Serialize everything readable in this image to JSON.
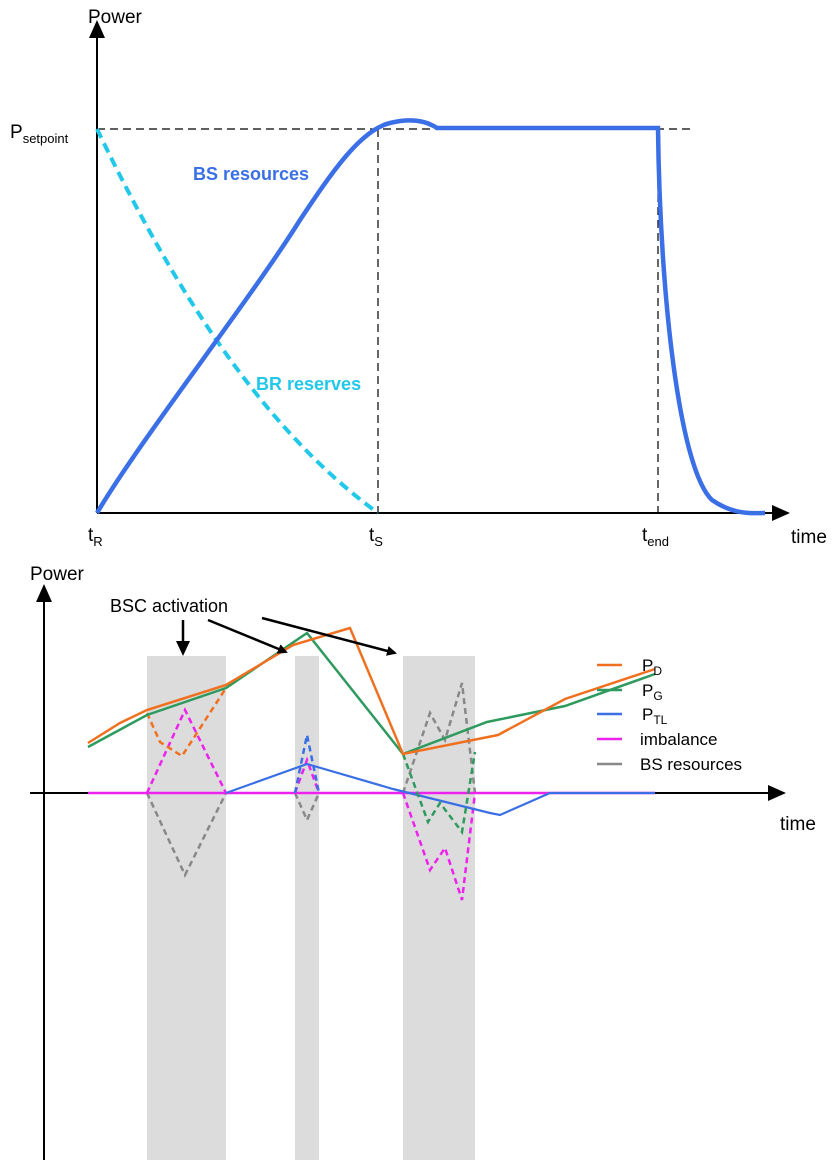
{
  "top": {
    "y_axis_label": "Power",
    "x_axis_label": "time",
    "setpoint_label_main": "P",
    "setpoint_label_sub": "setpoint",
    "tick_R_main": "t",
    "tick_R_sub": "R",
    "tick_S_main": "t",
    "tick_S_sub": "S",
    "tick_end_main": "t",
    "tick_end_sub": "end",
    "bs_label": "BS resources",
    "br_label": "BR reserves"
  },
  "bottom": {
    "y_axis_label": "Power",
    "x_axis_label": "time",
    "activation_label": "BSC activation",
    "legend": [
      {
        "main": "P",
        "sub": "D",
        "color": "#f07020"
      },
      {
        "main": "P",
        "sub": "G",
        "color": "#2e9a5e"
      },
      {
        "main": "P",
        "sub": "TL",
        "color": "#3b6fe6"
      },
      {
        "main": "imbalance",
        "sub": "",
        "color": "#ee22ee"
      },
      {
        "main": "BS resources",
        "sub": "",
        "color": "#888888"
      }
    ]
  },
  "colors": {
    "bs": "#3b6fe6",
    "br": "#22c8ea",
    "pd": "#f07020",
    "pg": "#2e9a5e",
    "ptl": "#3b6fe6",
    "imbalance": "#ee22ee",
    "bsres": "#888888",
    "band": "#dcdcdc"
  }
}
